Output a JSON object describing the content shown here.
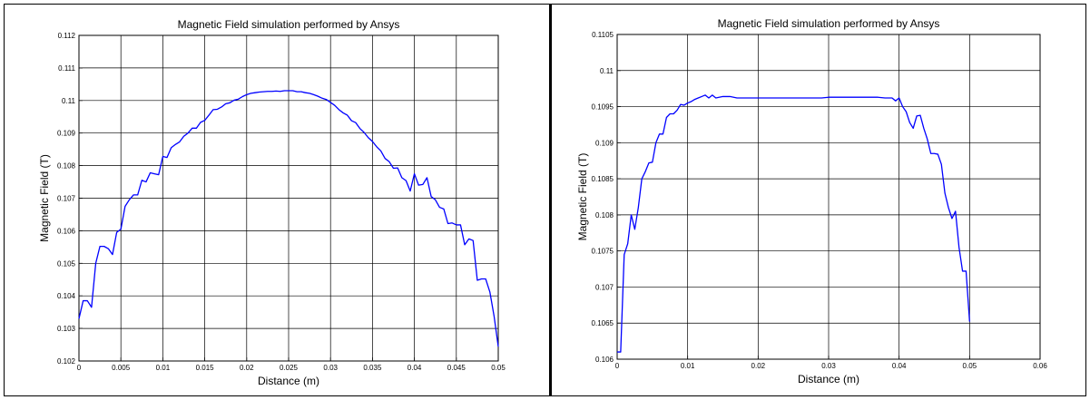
{
  "chart_data": [
    {
      "type": "line",
      "title": "Magnetic Field simulation performed by Ansys",
      "xlabel": "Distance (m)",
      "ylabel": "Magnetic Field (T)",
      "xlim": [
        0,
        0.05
      ],
      "ylim": [
        0.102,
        0.112
      ],
      "grid": true,
      "x_ticks": [
        "0",
        "0.005",
        "0.01",
        "0.015",
        "0.02",
        "0.025",
        "0.03",
        "0.035",
        "0.04",
        "0.045",
        "0.05"
      ],
      "y_ticks": [
        "0.102",
        "0.103",
        "0.104",
        "0.105",
        "0.106",
        "0.107",
        "0.108",
        "0.109",
        "0.11",
        "0.111",
        "0.112"
      ],
      "series": [
        {
          "color": "#0000ff",
          "x": [
            0,
            0.0005,
            0.001,
            0.0015,
            0.002,
            0.0025,
            0.003,
            0.0035,
            0.004,
            0.0045,
            0.005,
            0.0055,
            0.006,
            0.0065,
            0.007,
            0.0075,
            0.008,
            0.0085,
            0.009,
            0.0095,
            0.01,
            0.0105,
            0.011,
            0.0115,
            0.012,
            0.0125,
            0.013,
            0.0135,
            0.014,
            0.0145,
            0.015,
            0.0155,
            0.016,
            0.0165,
            0.017,
            0.0175,
            0.018,
            0.0185,
            0.019,
            0.0195,
            0.02,
            0.0205,
            0.021,
            0.0215,
            0.022,
            0.0225,
            0.023,
            0.0235,
            0.024,
            0.0245,
            0.025,
            0.0255,
            0.026,
            0.0265,
            0.027,
            0.0275,
            0.028,
            0.0285,
            0.029,
            0.0295,
            0.03,
            0.0305,
            0.031,
            0.0315,
            0.032,
            0.0325,
            0.033,
            0.0335,
            0.034,
            0.0345,
            0.035,
            0.0355,
            0.036,
            0.0365,
            0.037,
            0.0375,
            0.038,
            0.0385,
            0.039,
            0.0395,
            0.04,
            0.0405,
            0.041,
            0.0415,
            0.042,
            0.0425,
            0.043,
            0.0435,
            0.044,
            0.0445,
            0.045,
            0.0455,
            0.046,
            0.0465,
            0.047,
            0.0475,
            0.048,
            0.0485,
            0.049,
            0.0495,
            0.05
          ],
          "y": [
            0.1033,
            0.10385,
            0.10385,
            0.10365,
            0.105,
            0.10552,
            0.10552,
            0.10545,
            0.10527,
            0.10595,
            0.10605,
            0.10675,
            0.10695,
            0.1071,
            0.1071,
            0.10755,
            0.1075,
            0.10778,
            0.10775,
            0.10772,
            0.10828,
            0.10825,
            0.10855,
            0.10865,
            0.10873,
            0.1089,
            0.109,
            0.10915,
            0.10915,
            0.10933,
            0.10939,
            0.10955,
            0.10972,
            0.10973,
            0.1098,
            0.1099,
            0.10993,
            0.11001,
            0.11004,
            0.11012,
            0.11018,
            0.11022,
            0.11024,
            0.11026,
            0.11027,
            0.11028,
            0.11028,
            0.11029,
            0.11028,
            0.1103,
            0.1103,
            0.1103,
            0.11027,
            0.11027,
            0.11024,
            0.11022,
            0.11018,
            0.11013,
            0.11007,
            0.11003,
            0.10994,
            0.10985,
            0.10972,
            0.10962,
            0.10955,
            0.10938,
            0.10932,
            0.10914,
            0.10902,
            0.10886,
            0.10874,
            0.10858,
            0.10845,
            0.10822,
            0.10812,
            0.10792,
            0.10793,
            0.10763,
            0.10754,
            0.10722,
            0.10775,
            0.1074,
            0.10742,
            0.10763,
            0.10705,
            0.10695,
            0.10672,
            0.10667,
            0.10622,
            0.10624,
            0.10618,
            0.10618,
            0.10557,
            0.10575,
            0.1057,
            0.10448,
            0.10452,
            0.10452,
            0.10412,
            0.10338,
            0.10244
          ]
        }
      ]
    },
    {
      "type": "line",
      "title": "Magnetic Field simulation performed by Ansys",
      "xlabel": "Distance (m)",
      "ylabel": "Magnetic Field (T)",
      "xlim": [
        0,
        0.06
      ],
      "ylim": [
        0.106,
        0.1105
      ],
      "grid": true,
      "x_ticks": [
        "0",
        "0.01",
        "0.02",
        "0.03",
        "0.04",
        "0.05",
        "0.06"
      ],
      "y_ticks": [
        "0.106",
        "0.1065",
        "0.107",
        "0.1075",
        "0.108",
        "0.1085",
        "0.109",
        "0.1095",
        "0.11",
        "0.1105"
      ],
      "series": [
        {
          "color": "#0000ff",
          "x": [
            0,
            0.0005,
            0.001,
            0.0015,
            0.002,
            0.0025,
            0.003,
            0.0035,
            0.004,
            0.0045,
            0.005,
            0.0055,
            0.006,
            0.0065,
            0.007,
            0.0075,
            0.008,
            0.0085,
            0.009,
            0.0095,
            0.01,
            0.0105,
            0.011,
            0.0115,
            0.012,
            0.0125,
            0.013,
            0.0135,
            0.014,
            0.015,
            0.016,
            0.017,
            0.018,
            0.019,
            0.02,
            0.021,
            0.022,
            0.023,
            0.024,
            0.025,
            0.026,
            0.027,
            0.028,
            0.029,
            0.03,
            0.031,
            0.032,
            0.033,
            0.034,
            0.035,
            0.036,
            0.037,
            0.038,
            0.039,
            0.0395,
            0.04,
            0.0405,
            0.041,
            0.0415,
            0.042,
            0.0425,
            0.043,
            0.0435,
            0.044,
            0.0445,
            0.045,
            0.0455,
            0.046,
            0.0465,
            0.047,
            0.0475,
            0.048,
            0.0485,
            0.049,
            0.0495,
            0.05
          ],
          "y": [
            0.1061,
            0.1061,
            0.10745,
            0.1076,
            0.108,
            0.1078,
            0.1081,
            0.1085,
            0.1086,
            0.10872,
            0.10873,
            0.109,
            0.10912,
            0.10912,
            0.10935,
            0.1094,
            0.1094,
            0.10945,
            0.10953,
            0.10952,
            0.10955,
            0.10957,
            0.1096,
            0.10962,
            0.10964,
            0.10966,
            0.10962,
            0.10966,
            0.10962,
            0.10964,
            0.10964,
            0.10962,
            0.10962,
            0.10962,
            0.10962,
            0.10962,
            0.10962,
            0.10962,
            0.10962,
            0.10962,
            0.10962,
            0.10962,
            0.10962,
            0.10962,
            0.10963,
            0.10963,
            0.10963,
            0.10963,
            0.10963,
            0.10963,
            0.10963,
            0.10963,
            0.10962,
            0.10962,
            0.10958,
            0.10962,
            0.1095,
            0.10943,
            0.10928,
            0.1092,
            0.10937,
            0.10938,
            0.1092,
            0.10905,
            0.10885,
            0.10885,
            0.10884,
            0.1087,
            0.1083,
            0.1081,
            0.10795,
            0.10805,
            0.10755,
            0.10722,
            0.10722,
            0.10652
          ]
        }
      ]
    }
  ]
}
